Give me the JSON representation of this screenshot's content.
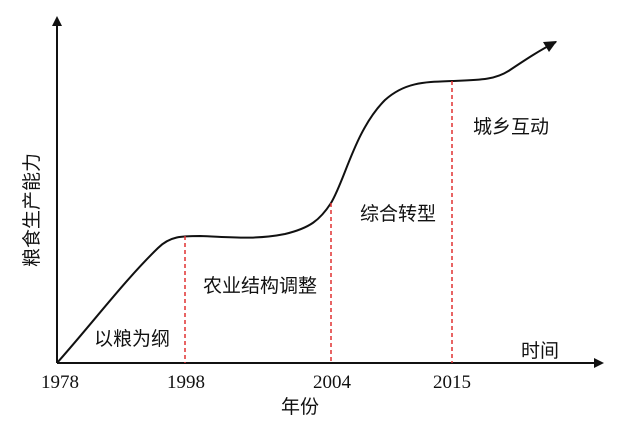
{
  "y_axis_label": "粮食生产能力",
  "x_axis_end_label": "时间",
  "x_axis_title": "年份",
  "years": [
    "1978",
    "1998",
    "2004",
    "2015"
  ],
  "phases": [
    "以粮为纲",
    "农业结构调整",
    "综合转型",
    "城乡互动"
  ],
  "colors": {
    "axis": "#111111",
    "curve": "#111111",
    "divider": "#e03030"
  }
}
